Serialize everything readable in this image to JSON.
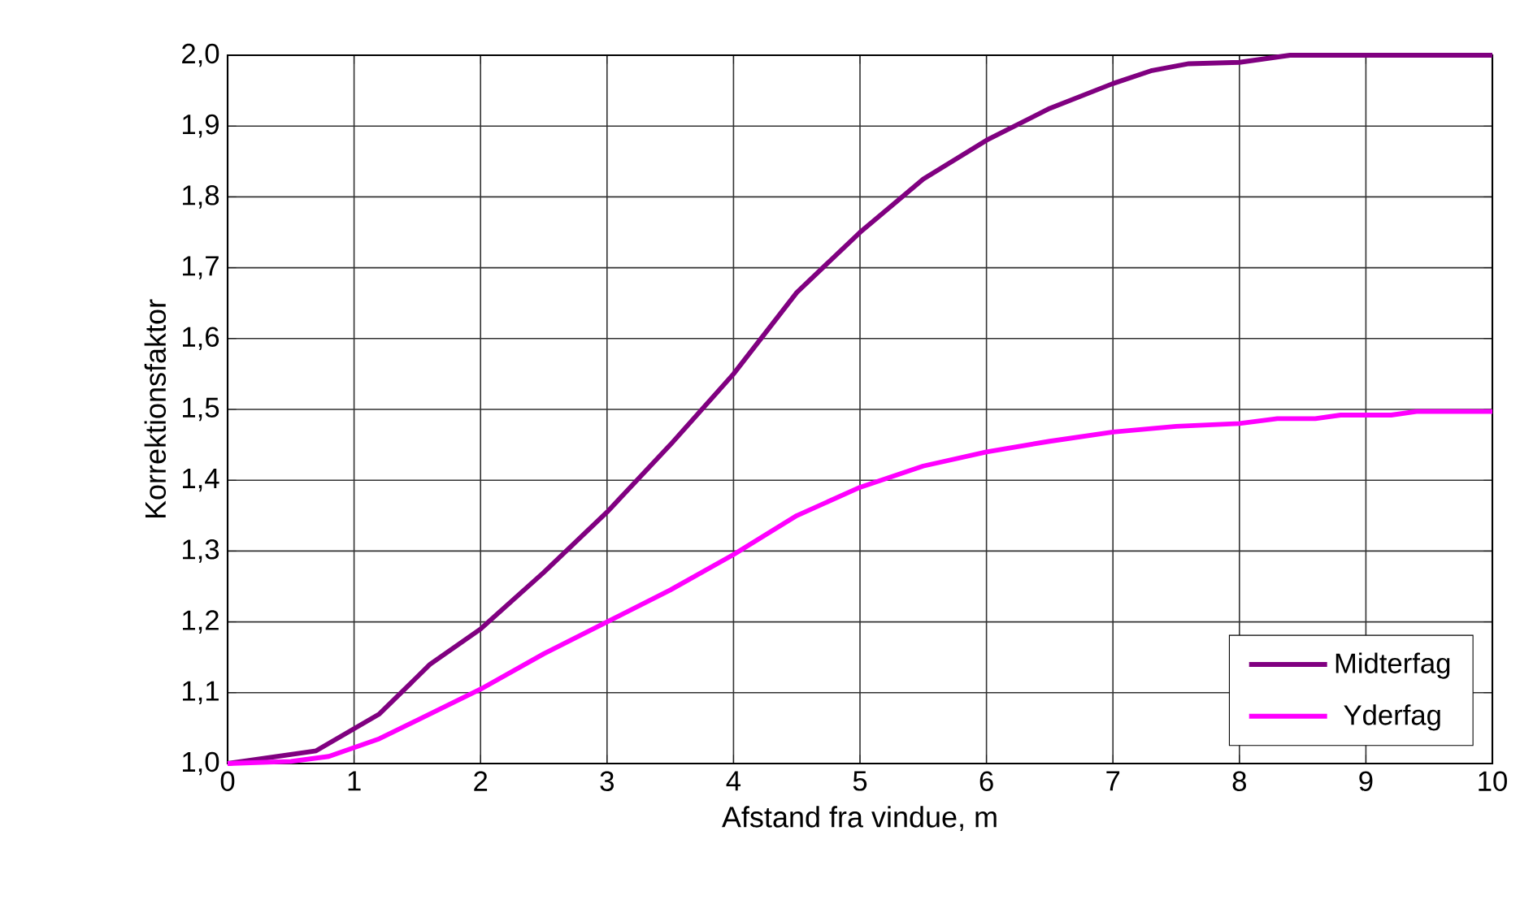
{
  "chart_data": {
    "type": "line",
    "xlabel": "Afstand fra vindue, m",
    "ylabel": "Korrektionsfaktor",
    "xlim": [
      0,
      10
    ],
    "xticks": [
      0,
      1,
      2,
      3,
      4,
      5,
      6,
      7,
      8,
      9,
      10
    ],
    "ylim": [
      1.0,
      2.0
    ],
    "yticks": [
      {
        "value": 1.0,
        "label": "1,0"
      },
      {
        "value": 1.1,
        "label": "1,1"
      },
      {
        "value": 1.2,
        "label": "1,2"
      },
      {
        "value": 1.3,
        "label": "1,3"
      },
      {
        "value": 1.4,
        "label": "1,4"
      },
      {
        "value": 1.5,
        "label": "1,5"
      },
      {
        "value": 1.6,
        "label": "1,6"
      },
      {
        "value": 1.7,
        "label": "1,7"
      },
      {
        "value": 1.8,
        "label": "1,8"
      },
      {
        "value": 1.9,
        "label": "1,9"
      },
      {
        "value": 2.0,
        "label": "2,0"
      }
    ],
    "grid": true,
    "legend": "bottom right",
    "marker": "none",
    "line_style": "solid",
    "series": [
      {
        "name": "Midterfag",
        "color": "#800080",
        "x": [
          0,
          0.7,
          1.2,
          1.6,
          2,
          2.5,
          3,
          3.5,
          4,
          4.5,
          5,
          5.5,
          6,
          6.5,
          7,
          7.3,
          7.6,
          8,
          8.4,
          10
        ],
        "values": [
          1.0,
          1.018,
          1.07,
          1.14,
          1.19,
          1.27,
          1.355,
          1.45,
          1.55,
          1.665,
          1.75,
          1.825,
          1.88,
          1.925,
          1.96,
          1.978,
          1.988,
          1.99,
          2.0,
          2.0
        ]
      },
      {
        "name": "Yderfag",
        "color": "#ff00ff",
        "x": [
          0,
          0.5,
          0.8,
          1.2,
          1.6,
          2,
          2.5,
          3,
          3.5,
          4,
          4.5,
          5,
          5.5,
          6,
          6.5,
          7,
          7.5,
          8,
          8.3,
          8.6,
          8.8,
          9.2,
          9.4,
          10
        ],
        "values": [
          1.0,
          1.003,
          1.01,
          1.035,
          1.07,
          1.105,
          1.155,
          1.2,
          1.245,
          1.295,
          1.35,
          1.39,
          1.42,
          1.44,
          1.455,
          1.468,
          1.476,
          1.48,
          1.487,
          1.487,
          1.492,
          1.492,
          1.497,
          1.497
        ]
      }
    ]
  }
}
